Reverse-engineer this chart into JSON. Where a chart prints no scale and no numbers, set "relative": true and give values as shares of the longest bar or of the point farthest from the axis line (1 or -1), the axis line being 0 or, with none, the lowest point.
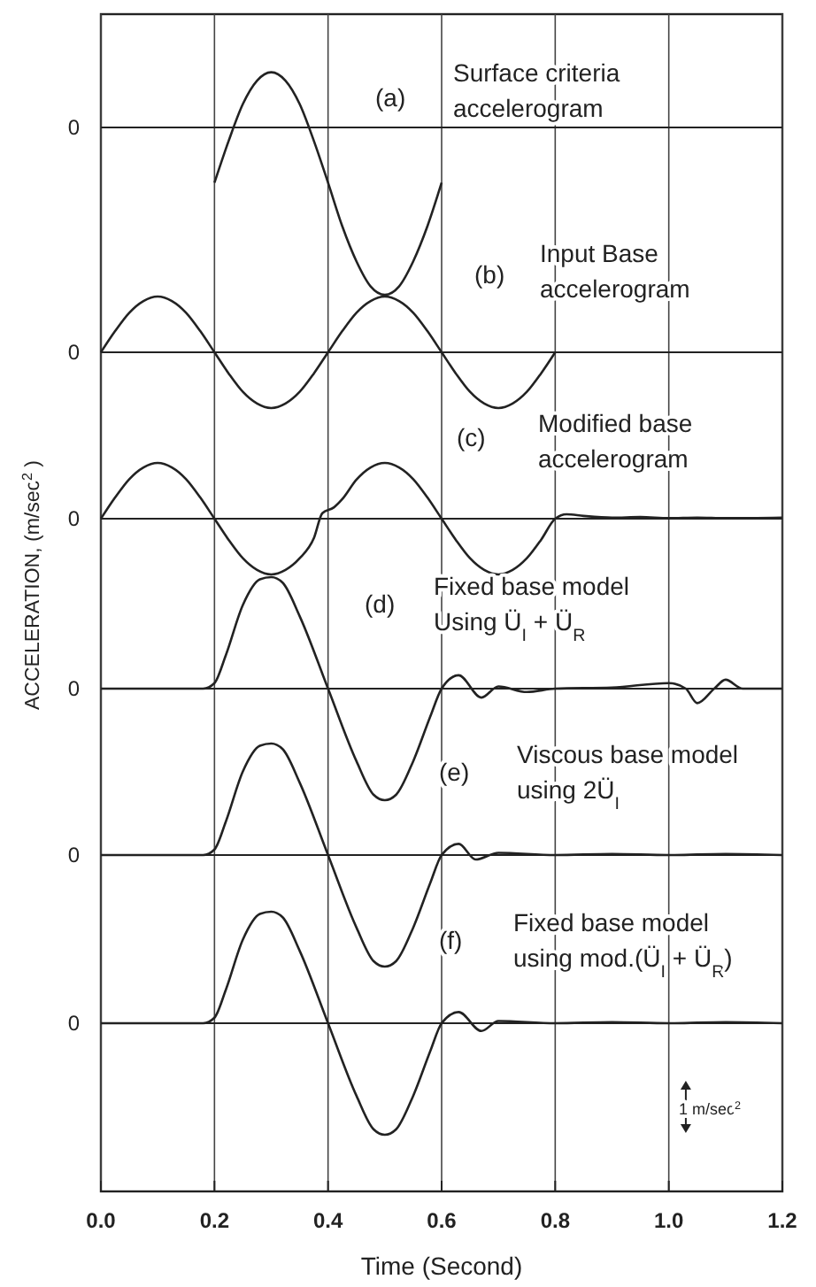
{
  "chart_data": [
    {
      "type": "line",
      "relative": true,
      "xlim": [
        0,
        1.2
      ],
      "xticks": [
        0,
        0.2,
        0.4,
        0.6,
        0.8,
        1,
        1.2
      ],
      "tick_labels": false,
      "grid": "x",
      "ref_lines": [
        {
          "axis": "y",
          "value": 0,
          "label": "0"
        }
      ],
      "annotations": [
        "(a)",
        "Surface criteria accelerogram"
      ],
      "series": [
        {
          "color": "#222222",
          "x": [
            0.2,
            0.225,
            0.25,
            0.275,
            0.3,
            0.325,
            0.35,
            0.375,
            0.4,
            0.425,
            0.45,
            0.475,
            0.5,
            0.525,
            0.55,
            0.575,
            0.6
          ],
          "values": [
            -0.33,
            -0.08,
            0.14,
            0.28,
            0.33,
            0.28,
            0.14,
            -0.08,
            -0.33,
            -0.59,
            -0.8,
            -0.95,
            -1,
            -0.95,
            -0.8,
            -0.59,
            -0.33
          ]
        }
      ]
    },
    {
      "type": "line",
      "relative": true,
      "xlim": [
        0,
        1.2
      ],
      "xticks": [
        0,
        0.2,
        0.4,
        0.6,
        0.8,
        1,
        1.2
      ],
      "tick_labels": false,
      "grid": "x",
      "ref_lines": [
        {
          "axis": "y",
          "value": 0,
          "label": "0"
        }
      ],
      "annotations": [
        "(b)",
        "Input Base accelerogram"
      ],
      "series": [
        {
          "color": "#222222",
          "x": [
            0,
            0.025,
            0.05,
            0.075,
            0.1,
            0.125,
            0.15,
            0.175,
            0.2,
            0.225,
            0.25,
            0.275,
            0.3,
            0.325,
            0.35,
            0.375,
            0.4,
            0.425,
            0.45,
            0.475,
            0.5,
            0.525,
            0.55,
            0.575,
            0.6,
            0.625,
            0.65,
            0.675,
            0.7,
            0.725,
            0.75,
            0.775,
            0.8
          ],
          "values": [
            0,
            0.38,
            0.71,
            0.92,
            1,
            0.92,
            0.71,
            0.38,
            0,
            -0.38,
            -0.71,
            -0.92,
            -1,
            -0.92,
            -0.71,
            -0.38,
            0,
            0.38,
            0.71,
            0.92,
            1,
            0.92,
            0.71,
            0.38,
            0,
            -0.38,
            -0.71,
            -0.92,
            -1,
            -0.92,
            -0.71,
            -0.38,
            0
          ]
        }
      ]
    },
    {
      "type": "line",
      "relative": true,
      "ylabel": "ACCELERATION, (m/sec$^{2}$ )",
      "xlim": [
        0,
        1.2
      ],
      "xticks": [
        0,
        0.2,
        0.4,
        0.6,
        0.8,
        1,
        1.2
      ],
      "tick_labels": false,
      "grid": "x",
      "ref_lines": [
        {
          "axis": "y",
          "value": 0,
          "label": "0"
        }
      ],
      "annotations": [
        "(c)",
        "Modified base accelerogram"
      ],
      "series": [
        {
          "color": "#222222",
          "x": [
            0,
            0.025,
            0.05,
            0.075,
            0.1,
            0.125,
            0.15,
            0.175,
            0.2,
            0.225,
            0.25,
            0.275,
            0.3,
            0.325,
            0.35,
            0.375,
            0.39,
            0.41,
            0.425,
            0.45,
            0.475,
            0.5,
            0.525,
            0.55,
            0.575,
            0.6,
            0.625,
            0.65,
            0.675,
            0.7,
            0.725,
            0.75,
            0.775,
            0.8,
            0.82,
            0.85,
            0.9,
            0.95,
            1.0,
            1.05,
            1.1,
            1.2
          ],
          "values": [
            0,
            0.38,
            0.71,
            0.92,
            1,
            0.92,
            0.71,
            0.38,
            0,
            -0.38,
            -0.71,
            -0.92,
            -1,
            -0.92,
            -0.71,
            -0.35,
            0.1,
            0.2,
            0.35,
            0.7,
            0.92,
            1,
            0.92,
            0.71,
            0.38,
            0,
            -0.38,
            -0.71,
            -0.92,
            -1,
            -0.92,
            -0.71,
            -0.38,
            0,
            0.08,
            0.05,
            0.02,
            0.03,
            0.01,
            0.02,
            0.01,
            0.02
          ]
        }
      ]
    },
    {
      "type": "line",
      "relative": true,
      "xlim": [
        0,
        1.2
      ],
      "xticks": [
        0,
        0.2,
        0.4,
        0.6,
        0.8,
        1,
        1.2
      ],
      "tick_labels": false,
      "grid": "x",
      "ref_lines": [
        {
          "axis": "y",
          "value": 0,
          "label": "0"
        }
      ],
      "annotations": [
        "(d)",
        "Fixed base model",
        "Using Ü$_{I}$ + Ü$_{R}$"
      ],
      "series": [
        {
          "color": "#222222",
          "x": [
            0,
            0.18,
            0.2,
            0.22,
            0.25,
            0.28,
            0.3,
            0.32,
            0.35,
            0.4,
            0.45,
            0.48,
            0.5,
            0.52,
            0.55,
            0.58,
            0.6,
            0.63,
            0.67,
            0.7,
            0.75,
            0.8,
            0.9,
            1.0,
            1.03,
            1.05,
            1.08,
            1.1,
            1.13,
            1.2
          ],
          "values": [
            0,
            0,
            0.05,
            0.3,
            0.75,
            0.98,
            1,
            0.95,
            0.65,
            0,
            -0.65,
            -0.95,
            -1,
            -0.95,
            -0.65,
            -0.25,
            0,
            0.12,
            -0.08,
            0.02,
            -0.03,
            0,
            0.01,
            0.05,
            0,
            -0.13,
            0,
            0.08,
            0,
            0
          ]
        }
      ]
    },
    {
      "type": "line",
      "relative": true,
      "xlim": [
        0,
        1.2
      ],
      "xticks": [
        0,
        0.2,
        0.4,
        0.6,
        0.8,
        1,
        1.2
      ],
      "tick_labels": false,
      "grid": "x",
      "ref_lines": [
        {
          "axis": "y",
          "value": 0,
          "label": "0"
        }
      ],
      "annotations": [
        "(e)",
        "Viscous base model",
        "using 2Ü$_{I}$"
      ],
      "series": [
        {
          "color": "#222222",
          "x": [
            0,
            0.18,
            0.2,
            0.22,
            0.25,
            0.28,
            0.3,
            0.32,
            0.35,
            0.4,
            0.45,
            0.48,
            0.5,
            0.52,
            0.55,
            0.58,
            0.6,
            0.63,
            0.66,
            0.7,
            0.8,
            0.9,
            1.0,
            1.1,
            1.2
          ],
          "values": [
            0,
            0,
            0.05,
            0.3,
            0.75,
            0.98,
            1,
            0.95,
            0.65,
            0,
            -0.65,
            -0.95,
            -1,
            -0.95,
            -0.65,
            -0.25,
            0,
            0.1,
            -0.04,
            0.02,
            0,
            0.01,
            0,
            0.01,
            0
          ]
        }
      ]
    },
    {
      "type": "line",
      "relative": true,
      "xlabel": "Time (Second)",
      "xlim": [
        0,
        1.2
      ],
      "xticks": [
        {
          "value": 0,
          "label": "0.0"
        },
        0.2,
        0.4,
        0.6,
        0.8,
        {
          "value": 1,
          "label": "1.0"
        },
        1.2
      ],
      "tick_labels": "x",
      "grid": "x",
      "ref_lines": [
        {
          "axis": "y",
          "value": 0,
          "label": "0"
        }
      ],
      "annotations": [
        "(f)",
        "Fixed base model",
        "using mod.(Ü$_{I}$ + Ü$_{R}$)",
        "1 m/sec$^{2}$"
      ],
      "series": [
        {
          "color": "#222222",
          "x": [
            0,
            0.18,
            0.2,
            0.22,
            0.25,
            0.28,
            0.3,
            0.32,
            0.35,
            0.4,
            0.45,
            0.48,
            0.5,
            0.52,
            0.55,
            0.58,
            0.6,
            0.63,
            0.67,
            0.7,
            0.8,
            0.9,
            1.0,
            1.1,
            1.2
          ],
          "values": [
            0,
            0,
            0.05,
            0.3,
            0.75,
            0.98,
            1,
            0.95,
            0.65,
            0,
            -0.65,
            -0.95,
            -1,
            -0.95,
            -0.65,
            -0.25,
            0,
            0.1,
            -0.07,
            0.02,
            0,
            0.01,
            0,
            0.01,
            0
          ]
        }
      ]
    }
  ]
}
